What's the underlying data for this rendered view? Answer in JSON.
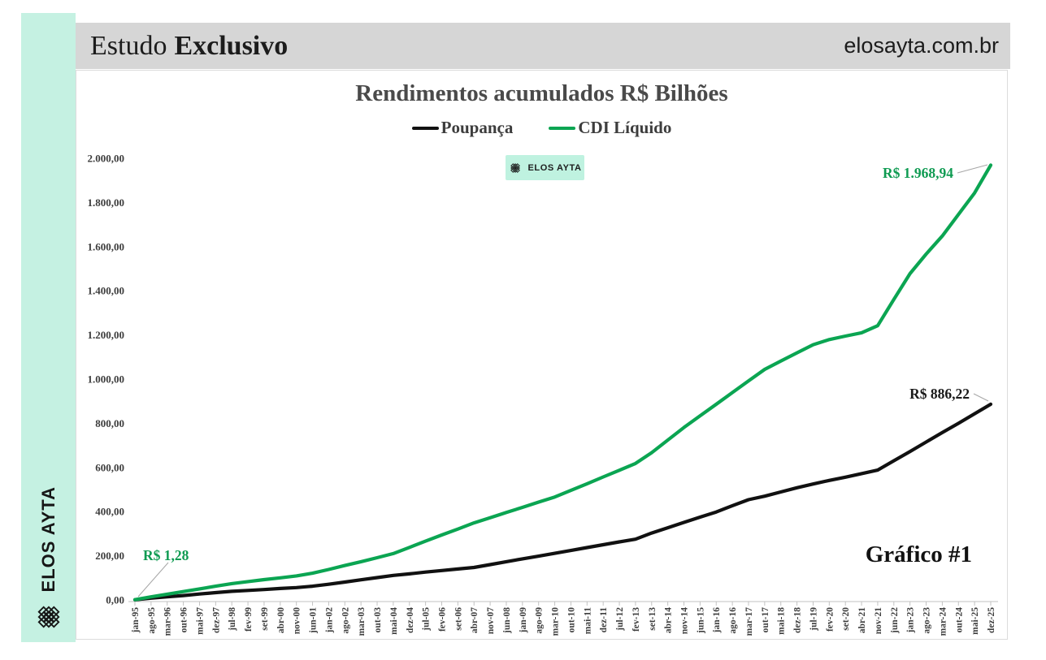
{
  "header": {
    "title_regular": "Estudo",
    "title_bold": "Exclusivo",
    "website": "elosayta.com.br"
  },
  "sidebar": {
    "brand": "ELOS AYTA"
  },
  "watermark": {
    "label": "ELOS AYTA"
  },
  "footer": {
    "label": "Gráfico #1"
  },
  "colors": {
    "mint": "#c5f1e2",
    "header_gray": "#d6d6d6",
    "poupanca_line": "#111111",
    "cdi_line": "#0ba552",
    "annotation_green": "#0f9b52"
  },
  "chart_data": {
    "type": "line",
    "title": "Rendimentos acumulados R$ Bilhões",
    "legend_position": "top",
    "grid": false,
    "ylim": [
      0,
      2000
    ],
    "y_ticks": [
      "0,00",
      "200,00",
      "400,00",
      "600,00",
      "800,00",
      "1.000,00",
      "1.200,00",
      "1.400,00",
      "1.600,00",
      "1.800,00",
      "2.000,00"
    ],
    "categories": [
      "jan-95",
      "ago-95",
      "mar-96",
      "out-96",
      "mai-97",
      "dez-97",
      "jul-98",
      "fev-99",
      "set-99",
      "abr-00",
      "nov-00",
      "jun-01",
      "jan-02",
      "ago-02",
      "mar-03",
      "out-03",
      "mai-04",
      "dez-04",
      "jul-05",
      "fev-06",
      "set-06",
      "abr-07",
      "nov-07",
      "jun-08",
      "jan-09",
      "ago-09",
      "mar-10",
      "out-10",
      "mai-11",
      "dez-11",
      "jul-12",
      "fev-13",
      "set-13",
      "abr-14",
      "nov-14",
      "jun-15",
      "jan-16",
      "ago-16",
      "mar-17",
      "out-17",
      "mai-18",
      "dez-18",
      "jul-19",
      "fev-20",
      "set-20",
      "abr-21",
      "nov-21",
      "jun-22",
      "jan-23",
      "ago-23",
      "mar-24",
      "out-24",
      "mai-25",
      "dez-25"
    ],
    "series": [
      {
        "name": "Poupança",
        "color": "#111111",
        "values": [
          0.9,
          8,
          14,
          20,
          27,
          33,
          39,
          43,
          47,
          52,
          56,
          62,
          71,
          81,
          91,
          101,
          111,
          118,
          126,
          133,
          140,
          147,
          160,
          173,
          186,
          198,
          211,
          224,
          237,
          250,
          263,
          275,
          303,
          327,
          351,
          375,
          398,
          427,
          454,
          470,
          489,
          508,
          525,
          541,
          556,
          572,
          588,
          630,
          672,
          715,
          758,
          800,
          843,
          886.22
        ],
        "end_label": "R$ 886,22"
      },
      {
        "name": "CDI Líquido",
        "color": "#0ba552",
        "values": [
          1.28,
          14,
          26,
          38,
          50,
          62,
          74,
          83,
          92,
          100,
          109,
          121,
          138,
          156,
          173,
          191,
          210,
          238,
          266,
          294,
          321,
          349,
          372,
          396,
          419,
          443,
          466,
          496,
          526,
          557,
          587,
          618,
          667,
          724,
          781,
          834,
          886,
          939,
          992,
          1044,
          1082,
          1119,
          1156,
          1179,
          1195,
          1210,
          1242,
          1361,
          1478,
          1566,
          1648,
          1746,
          1843,
          1968.94
        ],
        "end_label": "R$ 1.968,94"
      }
    ],
    "annotations": [
      {
        "text": "R$ 1,28",
        "color": "#0f9b52",
        "x": 82,
        "y": 603,
        "anchor": "start",
        "size": 17.5,
        "leader": [
          [
            113,
            606
          ],
          [
            76,
            648
          ]
        ]
      },
      {
        "text": "R$ 1.968,94",
        "color": "#0f9b52",
        "x": 1079,
        "y": 132,
        "anchor": "end",
        "size": 17.5,
        "leader": [
          [
            1084,
            126
          ],
          [
            1121,
            116
          ]
        ]
      },
      {
        "text": "R$ 886,22",
        "color": "#1a1a1a",
        "x": 1099,
        "y": 404,
        "anchor": "end",
        "size": 17.5,
        "leader": [
          [
            1104,
            398
          ],
          [
            1122,
            407
          ]
        ]
      }
    ]
  }
}
